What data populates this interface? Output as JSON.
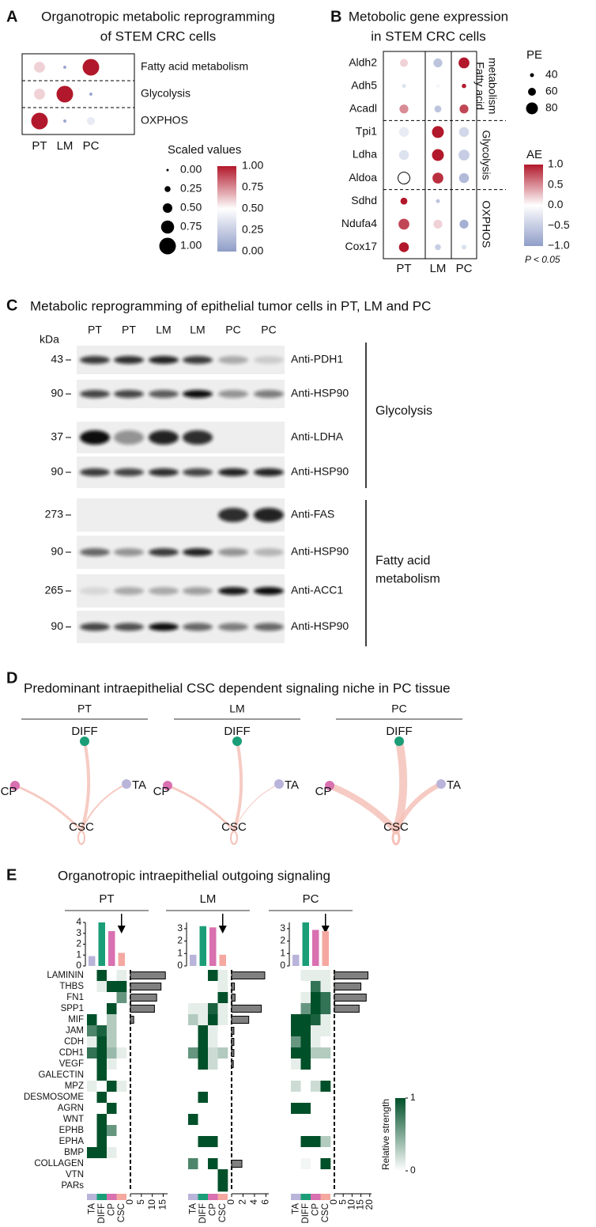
{
  "panels": [
    {
      "label": "A",
      "type": "dotplot",
      "title": [
        "Organotropic metabolic reprogramming",
        "of STEM CRC cells"
      ],
      "rows": [
        "Fatty acid metabolism",
        "Glycolysis",
        "OXPHOS"
      ],
      "columns": [
        "PT",
        "LM",
        "PC"
      ],
      "values": [
        [
          0.6,
          0.05,
          1
        ],
        [
          0.6,
          1,
          0.05
        ],
        [
          1,
          0.05,
          0.4
        ]
      ],
      "lim": [
        0,
        1
      ],
      "legend_title": "Scaled values",
      "size_ticks": [
        {
          "value": 0,
          "label": "0.00"
        },
        {
          "value": 0.25,
          "label": "0.25"
        },
        {
          "value": 0.5,
          "label": "0.50"
        },
        {
          "value": 0.75,
          "label": "0.75"
        },
        {
          "value": 1,
          "label": "1.00"
        }
      ],
      "color_ticks": [
        {
          "value": 1,
          "label": "1.00"
        },
        {
          "value": 0.75,
          "label": "0.75"
        },
        {
          "value": 0.5,
          "label": "0.50"
        },
        {
          "value": 0.25,
          "label": "0.25"
        },
        {
          "value": 0,
          "label": "0.00"
        }
      ]
    },
    {
      "label": "B",
      "type": "dotplot",
      "title": [
        "Metobolic gene expression",
        "in STEM CRC cells"
      ],
      "rows": [
        "Aldh2",
        "Adh5",
        "Acadl",
        "Tpi1",
        "Ldha",
        "Aldoa",
        "Sdhd",
        "Ndufa4",
        "Cox17"
      ],
      "columns": [
        "PT",
        "LM",
        "PC"
      ],
      "groups": [
        [
          "Fatty acid",
          "metabolism"
        ],
        [
          "Glycolysis"
        ],
        [
          "OXPHOS"
        ]
      ],
      "ae": [
        [
          0.2,
          -0.6,
          1
        ],
        [
          -0.3,
          -0.1,
          1
        ],
        [
          0.5,
          -0.6,
          0.8
        ],
        [
          -0.2,
          1,
          -0.4
        ],
        [
          -0.3,
          1,
          -0.5
        ],
        [
          0,
          0.9,
          -0.7
        ],
        [
          1,
          -0.6,
          null
        ],
        [
          0.8,
          0.2,
          -0.8
        ],
        [
          1,
          -0.5,
          -0.3
        ]
      ],
      "pe": [
        [
          60,
          65,
          75
        ],
        [
          40,
          38,
          42
        ],
        [
          65,
          55,
          65
        ],
        [
          70,
          80,
          70
        ],
        [
          70,
          80,
          75
        ],
        [
          80,
          75,
          70
        ],
        [
          55,
          40,
          null
        ],
        [
          75,
          65,
          65
        ],
        [
          70,
          50,
          45
        ]
      ],
      "pe_title": "PE",
      "pe_ticks": [
        40,
        60,
        80
      ],
      "ae_title": "AE",
      "ae_lim": [
        -1,
        1
      ],
      "ae_ticks": [
        {
          "value": 1,
          "label": "1.0"
        },
        {
          "value": 0.5,
          "label": "0.5"
        },
        {
          "value": 0,
          "label": "0.0"
        },
        {
          "value": -0.5,
          "label": "−0.5"
        },
        {
          "value": -1,
          "label": "−1.0"
        }
      ],
      "note": "P < 0.05"
    },
    {
      "label": "C",
      "type": "blot",
      "title": "Metabolic reprogramming of epithelial tumor cells in PT, LM and PC",
      "lanes": [
        "PT",
        "PT",
        "LM",
        "LM",
        "PC",
        "PC"
      ],
      "unit_label": "kDa",
      "blots": [
        {
          "marker": 43,
          "antibody": "Anti-PDH1"
        },
        {
          "marker": 90,
          "antibody": "Anti-HSP90"
        },
        {
          "marker": 37,
          "antibody": "Anti-LDHA"
        },
        {
          "marker": 90,
          "antibody": "Anti-HSP90"
        },
        {
          "marker": 273,
          "antibody": "Anti-FAS"
        },
        {
          "marker": 90,
          "antibody": "Anti-HSP90"
        },
        {
          "marker": 265,
          "antibody": "Anti-ACC1"
        },
        {
          "marker": 90,
          "antibody": "Anti-HSP90"
        }
      ],
      "groups": [
        [
          "Glycolysis"
        ],
        [
          "Fatty acid",
          "metabolism"
        ]
      ]
    },
    {
      "label": "D",
      "type": "network",
      "title": "Predominant intraepithelial CSC dependent signaling niche in PC tissue",
      "nodes": [
        "DIFF",
        "CP",
        "TA",
        "CSC"
      ],
      "node_colors": [
        "#1b9e77",
        "#d970b0",
        "#b9b4da",
        "#f4c2b8"
      ],
      "tissues": [
        {
          "name": "PT",
          "weights": [
            4,
            3,
            2,
            2
          ]
        },
        {
          "name": "LM",
          "weights": [
            4,
            3,
            1,
            2
          ]
        },
        {
          "name": "PC",
          "weights": [
            10,
            8,
            6,
            3
          ]
        }
      ]
    },
    {
      "label": "E",
      "type": "heatmap",
      "title": "Organotropic intraepithelial outgoing signaling",
      "rows": [
        "LAMININ",
        "THBS",
        "FN1",
        "SPP1",
        "MIF",
        "JAM",
        "CDH",
        "CDH1",
        "VEGF",
        "GALECTIN",
        "MPZ",
        "DESMOSOME",
        "AGRN",
        "WNT",
        "EPHB",
        "EPHA",
        "BMP",
        "COLLAGEN",
        "VTN",
        "PARs"
      ],
      "columns": [
        "TA",
        "DIFF",
        "CP",
        "CSC"
      ],
      "column_colors": [
        "#b9b4da",
        "#1b9e77",
        "#d970b0",
        "#f4a8a0"
      ],
      "color_lim": [
        0,
        1
      ],
      "legend_title": "Relative strength",
      "legend_ticks": [
        1,
        0
      ],
      "tissues": [
        {
          "name": "PT",
          "matrix": [
            [
              0,
              1,
              0,
              0.1
            ],
            [
              0,
              0.1,
              1,
              1
            ],
            [
              0,
              0,
              0,
              0.6
            ],
            [
              0,
              0,
              1,
              0
            ],
            [
              1,
              0,
              0.3,
              0
            ],
            [
              0.7,
              0.9,
              0.3,
              0
            ],
            [
              0.1,
              1,
              0.3,
              0
            ],
            [
              0.8,
              1,
              0.4,
              0.1
            ],
            [
              0,
              1,
              0.1,
              0
            ],
            [
              0,
              1,
              0,
              0
            ],
            [
              0.1,
              0,
              1,
              0.1
            ],
            [
              0,
              1,
              0,
              0
            ],
            [
              0,
              0,
              1,
              0
            ],
            [
              0,
              1,
              0,
              0
            ],
            [
              0,
              1,
              0.6,
              0
            ],
            [
              0,
              1,
              0,
              0
            ],
            [
              1,
              1,
              0.1,
              0
            ],
            [
              0,
              0,
              0,
              0
            ],
            [
              0,
              0,
              0,
              0
            ],
            [
              0,
              0,
              0,
              0
            ]
          ],
          "col_totals": [
            0.9,
            4,
            3.2,
            1.2
          ],
          "ylim": [
            0,
            4
          ],
          "yticks": [
            0,
            1,
            2,
            3,
            4
          ],
          "row_totals": [
            16,
            14,
            12,
            11,
            1.5,
            0,
            0,
            0,
            0,
            0,
            0,
            0,
            0,
            0,
            0,
            0,
            0,
            0,
            0,
            0
          ],
          "xlim": [
            0,
            17
          ],
          "xticks": [
            0,
            5,
            10,
            15
          ]
        },
        {
          "name": "LM",
          "matrix": [
            [
              0,
              0,
              1,
              0.1
            ],
            [
              0,
              0,
              0,
              0.1
            ],
            [
              0,
              0,
              0,
              1
            ],
            [
              0.1,
              0.1,
              0.9,
              0.1
            ],
            [
              0.3,
              0.1,
              1,
              0.1
            ],
            [
              0,
              1,
              0.1,
              0
            ],
            [
              0,
              1,
              0.1,
              0
            ],
            [
              0.6,
              1,
              0.2,
              0.3
            ],
            [
              0,
              1,
              0.2,
              0
            ],
            [
              0,
              0,
              0,
              0
            ],
            [
              0,
              0,
              0,
              0
            ],
            [
              0,
              1,
              0,
              0
            ],
            [
              0,
              0,
              0,
              0
            ],
            [
              1,
              0,
              0,
              0
            ],
            [
              0,
              0,
              0,
              0
            ],
            [
              0,
              1,
              1,
              0
            ],
            [
              0,
              0,
              0,
              0
            ],
            [
              0.7,
              0,
              1,
              0
            ],
            [
              0,
              0,
              0,
              1
            ],
            [
              0,
              0,
              0,
              1
            ]
          ],
          "col_totals": [
            0.9,
            3.2,
            3.1,
            0.9
          ],
          "ylim": [
            0,
            3.5
          ],
          "yticks": [
            0,
            1,
            2,
            3
          ],
          "row_totals": [
            5.8,
            0.5,
            0.6,
            5.2,
            3,
            0.4,
            0.4,
            0.4,
            0.3,
            0,
            0,
            0,
            0,
            0,
            0,
            0,
            0,
            1.8,
            0,
            0
          ],
          "xlim": [
            0,
            6.5
          ],
          "xticks": [
            0,
            2,
            4,
            6
          ]
        },
        {
          "name": "PC",
          "matrix": [
            [
              0,
              0.1,
              0.1,
              0.1
            ],
            [
              0,
              0,
              0.8,
              0.1
            ],
            [
              0,
              0.1,
              1,
              0.8
            ],
            [
              0,
              0.6,
              1,
              0.8
            ],
            [
              1,
              1,
              0.9,
              0.1
            ],
            [
              1,
              1,
              0.1,
              0.1
            ],
            [
              0.6,
              1,
              0.1,
              0
            ],
            [
              1,
              1,
              0.3,
              0.3
            ],
            [
              0.1,
              1,
              0,
              0
            ],
            [
              0,
              0,
              0,
              0
            ],
            [
              0.2,
              0,
              0.2,
              1
            ],
            [
              0,
              0,
              0,
              0
            ],
            [
              1,
              1,
              0,
              0
            ],
            [
              0,
              0,
              0,
              0
            ],
            [
              0,
              0,
              0,
              0
            ],
            [
              0,
              1,
              1,
              0.3
            ],
            [
              0,
              0,
              0,
              0
            ],
            [
              0,
              0.05,
              0,
              1
            ],
            [
              0,
              0,
              0,
              0
            ],
            [
              0,
              0,
              0,
              0
            ]
          ],
          "col_totals": [
            0.9,
            3.5,
            2.9,
            2.8
          ],
          "ylim": [
            0,
            3.5
          ],
          "yticks": [
            0,
            1,
            2,
            3
          ],
          "row_totals": [
            19,
            15,
            18,
            14,
            0,
            0,
            0,
            0,
            0,
            0,
            0,
            0,
            0,
            0,
            0,
            0,
            0,
            0,
            0,
            0
          ],
          "xlim": [
            0,
            21
          ],
          "xticks": [
            0,
            5,
            10,
            15,
            20
          ]
        }
      ]
    }
  ]
}
